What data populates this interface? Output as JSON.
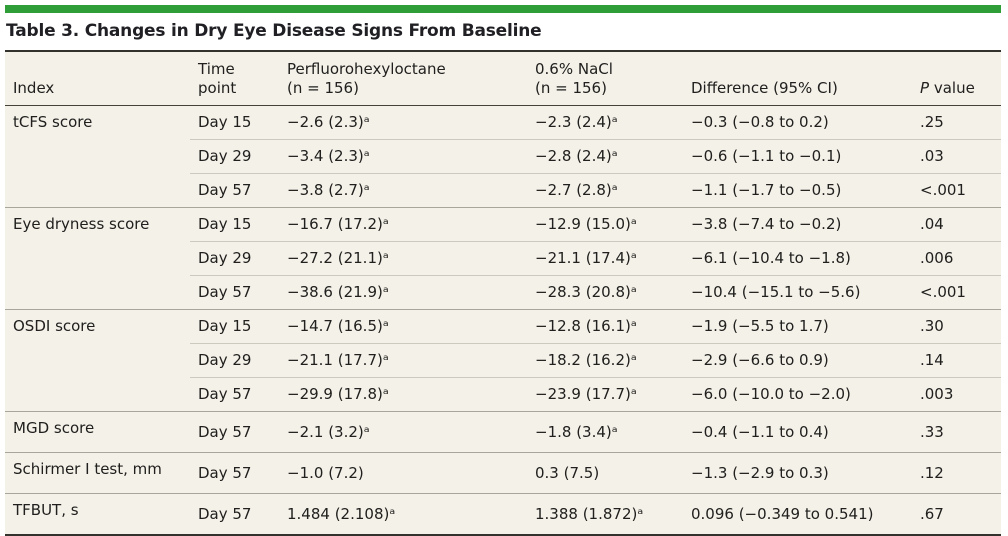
{
  "accent_color": "#2f9e38",
  "title": "Table 3. Changes in Dry Eye Disease Signs From Baseline",
  "header": {
    "index": "Index",
    "time_line1": "Time",
    "time_line2": "point",
    "pfho_name": "Perfluorohexyloctane",
    "pfho_n": "(n = 156)",
    "nacl_name": "0.6% NaCl",
    "nacl_n": "(n = 156)",
    "difference": "Difference (95% CI)",
    "p_italic": "P",
    "p_rest": "value"
  },
  "rows": [
    {
      "index": "tCFS score",
      "time": "Day 15",
      "pfho": "−2.6 (2.3)ᵃ",
      "nacl": "−2.3 (2.4)ᵃ",
      "diff": "−0.3 (−0.8 to 0.2)",
      "p": ".25"
    },
    {
      "time": "Day 29",
      "pfho": "−3.4 (2.3)ᵃ",
      "nacl": "−2.8 (2.4)ᵃ",
      "diff": "−0.6 (−1.1 to −0.1)",
      "p": ".03"
    },
    {
      "time": "Day 57",
      "pfho": "−3.8 (2.7)ᵃ",
      "nacl": "−2.7 (2.8)ᵃ",
      "diff": "−1.1 (−1.7 to −0.5)",
      "p": "<.001"
    },
    {
      "index": "Eye dryness score",
      "time": "Day 15",
      "pfho": "−16.7 (17.2)ᵃ",
      "nacl": "−12.9 (15.0)ᵃ",
      "diff": "−3.8 (−7.4 to −0.2)",
      "p": ".04"
    },
    {
      "time": "Day 29",
      "pfho": "−27.2 (21.1)ᵃ",
      "nacl": "−21.1 (17.4)ᵃ",
      "diff": "−6.1 (−10.4 to −1.8)",
      "p": ".006"
    },
    {
      "time": "Day 57",
      "pfho": "−38.6 (21.9)ᵃ",
      "nacl": "−28.3 (20.8)ᵃ",
      "diff": "−10.4 (−15.1 to −5.6)",
      "p": "<.001"
    },
    {
      "index": "OSDI score",
      "time": "Day 15",
      "pfho": "−14.7 (16.5)ᵃ",
      "nacl": "−12.8 (16.1)ᵃ",
      "diff": "−1.9 (−5.5 to 1.7)",
      "p": ".30"
    },
    {
      "time": "Day 29",
      "pfho": "−21.1 (17.7)ᵃ",
      "nacl": "−18.2 (16.2)ᵃ",
      "diff": "−2.9 (−6.6 to 0.9)",
      "p": ".14"
    },
    {
      "time": "Day 57",
      "pfho": "−29.9 (17.8)ᵃ",
      "nacl": "−23.9 (17.7)ᵃ",
      "diff": "−6.0 (−10.0 to −2.0)",
      "p": ".003"
    },
    {
      "index": "MGD score",
      "time": "Day 57",
      "pfho": "−2.1 (3.2)ᵃ",
      "nacl": "−1.8 (3.4)ᵃ",
      "diff": "−0.4 (−1.1 to 0.4)",
      "p": ".33"
    },
    {
      "index": "Schirmer I test, mm",
      "time": "Day 57",
      "pfho": "−1.0 (7.2)",
      "nacl": "0.3 (7.5)",
      "diff": "−1.3 (−2.9 to 0.3)",
      "p": ".12"
    },
    {
      "index": "TFBUT, s",
      "time": "Day 57",
      "pfho": "1.484 (2.108)ᵃ",
      "nacl": "1.388 (1.872)ᵃ",
      "diff": "0.096 (−0.349 to 0.541)",
      "p": ".67"
    }
  ]
}
